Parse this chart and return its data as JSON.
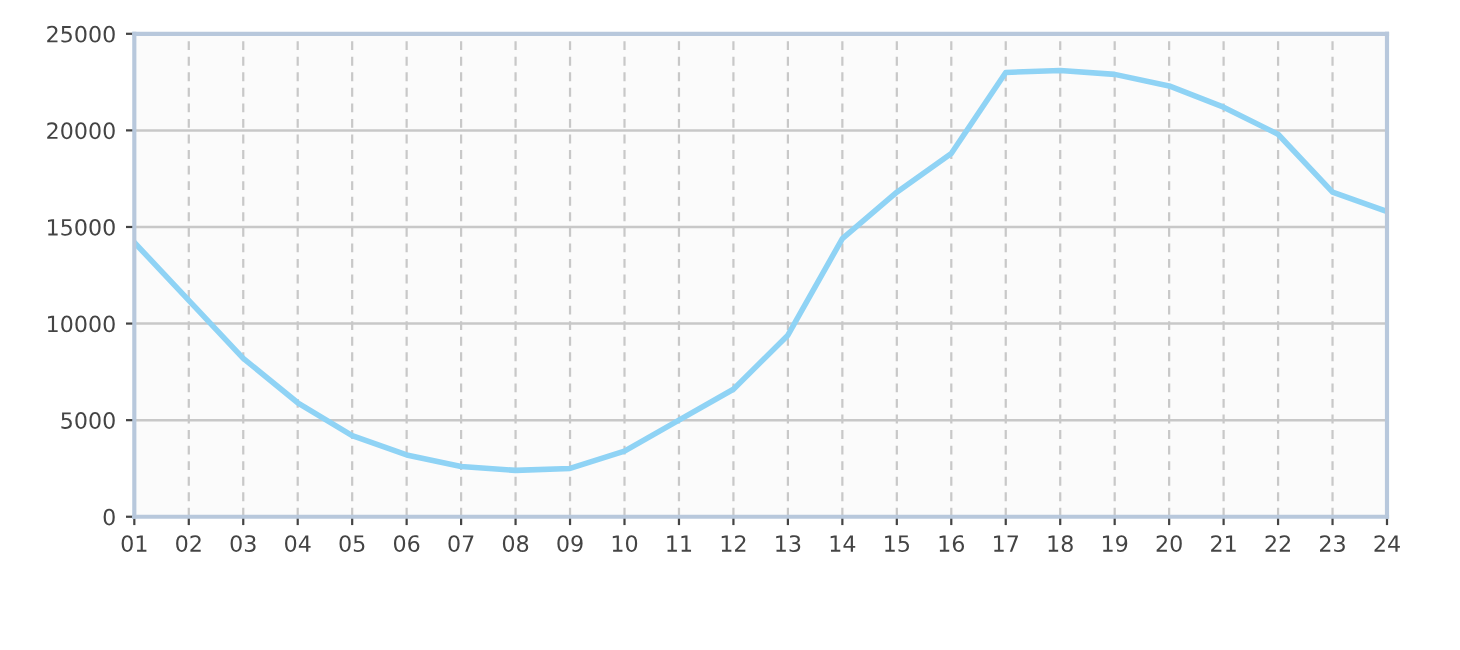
{
  "chart_data": {
    "type": "line",
    "categories": [
      "01",
      "02",
      "03",
      "04",
      "05",
      "06",
      "07",
      "08",
      "09",
      "10",
      "11",
      "12",
      "13",
      "14",
      "15",
      "16",
      "17",
      "18",
      "19",
      "20",
      "21",
      "22",
      "23",
      "24"
    ],
    "series": [
      {
        "color": "#8fd3f5",
        "values": [
          14200,
          11200,
          8200,
          5900,
          4200,
          3200,
          2600,
          2400,
          2500,
          3400,
          5000,
          6600,
          9400,
          14400,
          16800,
          18800,
          23000,
          23100,
          22900,
          22300,
          21200,
          19800,
          16800,
          15800
        ]
      }
    ],
    "ylim": [
      0,
      25000
    ],
    "yticks": [
      0,
      5000,
      10000,
      15000,
      20000,
      25000
    ],
    "grid": true,
    "marker": "none",
    "line_style": "solid"
  }
}
